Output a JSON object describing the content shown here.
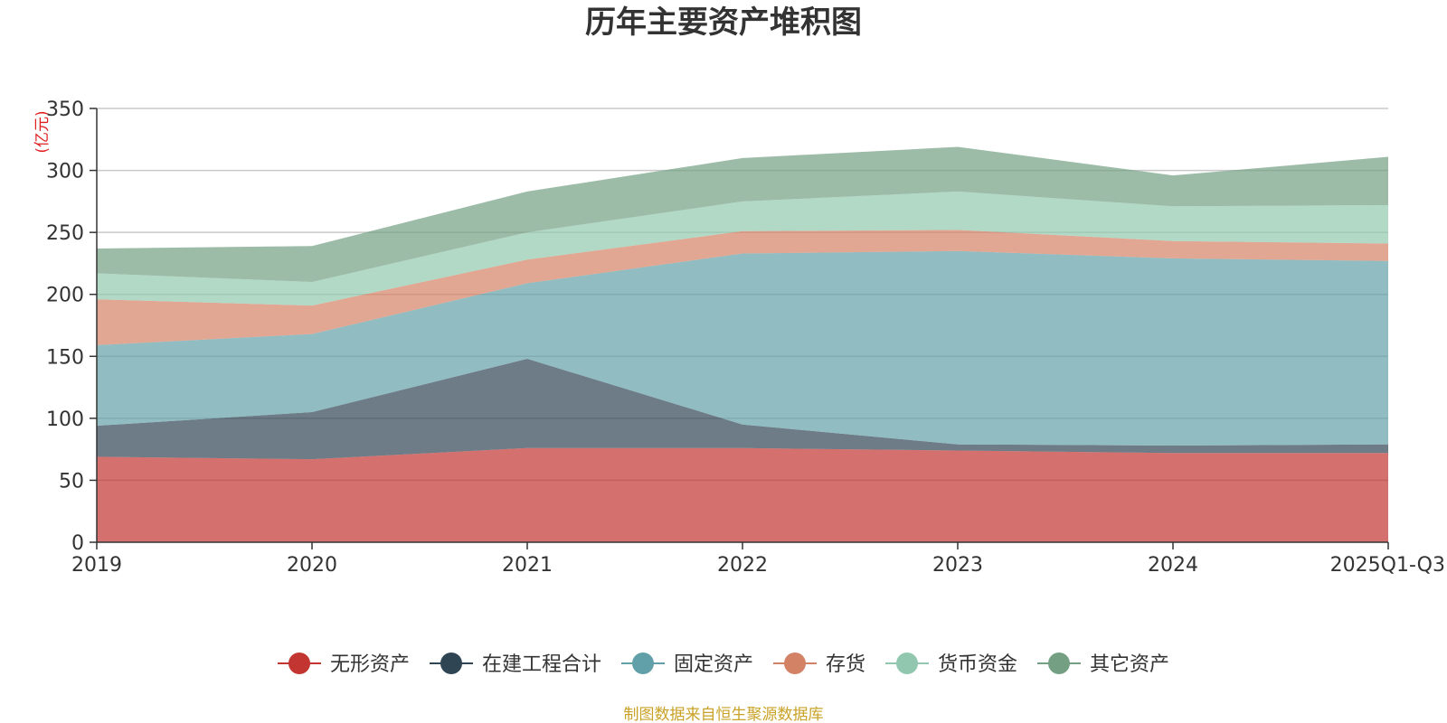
{
  "chart_data": {
    "type": "area",
    "stacked": true,
    "title": "历年主要资产堆积图",
    "ylabel": "(亿元)",
    "xlabel": "",
    "categories": [
      "2019",
      "2020",
      "2021",
      "2022",
      "2023",
      "2024",
      "2025Q1-Q3"
    ],
    "ylim": [
      0,
      350
    ],
    "yticks": [
      0,
      50,
      100,
      150,
      200,
      250,
      300,
      350
    ],
    "grid": true,
    "legend_position": "bottom",
    "series": [
      {
        "name": "无形资产",
        "color": "#c23531",
        "values": [
          69,
          67,
          76,
          76,
          74,
          72,
          72
        ]
      },
      {
        "name": "在建工程合计",
        "color": "#2f4554",
        "values": [
          25,
          38,
          72,
          19,
          5,
          6,
          7
        ]
      },
      {
        "name": "固定资产",
        "color": "#61a0a8",
        "values": [
          65,
          63,
          61,
          138,
          156,
          151,
          148
        ]
      },
      {
        "name": "存货",
        "color": "#d48265",
        "values": [
          37,
          23,
          19,
          18,
          17,
          14,
          14
        ]
      },
      {
        "name": "货币资金",
        "color": "#91c7ae",
        "values": [
          21,
          19,
          22,
          24,
          31,
          28,
          31
        ]
      },
      {
        "name": "其它资产",
        "color": "#749f83",
        "values": [
          20,
          29,
          33,
          35,
          36,
          25,
          39
        ]
      }
    ]
  },
  "footer": {
    "source": "制图数据来自恒生聚源数据库"
  }
}
